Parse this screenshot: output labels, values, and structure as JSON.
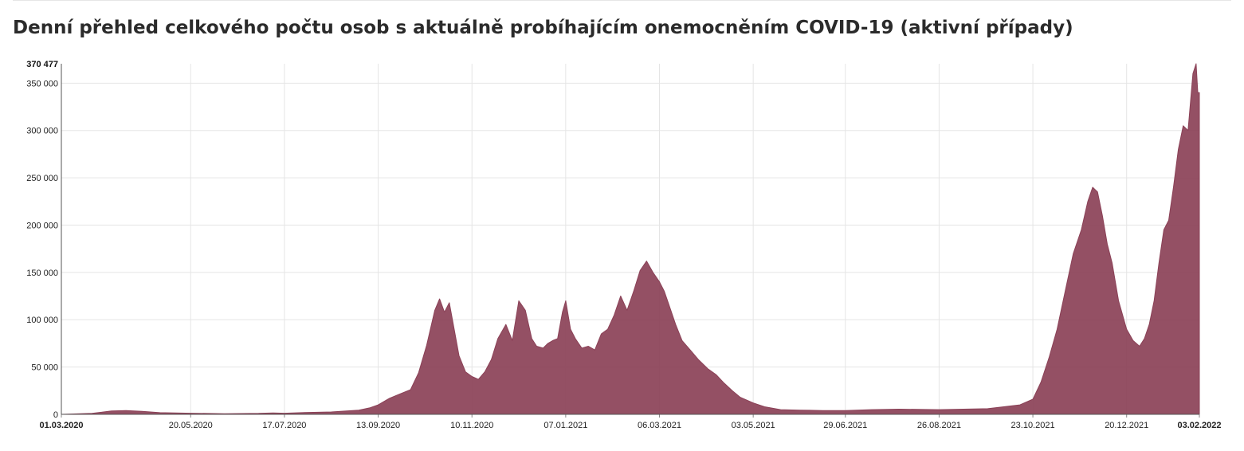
{
  "page": {
    "title": "Denní přehled celkového počtu osob s aktuálně probíhajícím onemocněním COVID-19 (aktivní případy)"
  },
  "chart_data": {
    "type": "area",
    "title": "Denní přehled celkového počtu osob s aktuálně probíhajícím onemocněním COVID-19 (aktivní případy)",
    "color": "#8b4157",
    "grid": true,
    "xlim": [
      "01.03.2020",
      "03.02.2022"
    ],
    "ylim": [
      0,
      370477
    ],
    "y_ticks": [
      0,
      50000,
      100000,
      150000,
      200000,
      250000,
      300000,
      350000
    ],
    "y_tick_labels": [
      "0",
      "50 000",
      "100 000",
      "150 000",
      "200 000",
      "250 000",
      "300 000",
      "350 000"
    ],
    "y_max_label": "370 477",
    "x_ticks": [
      "01.03.2020",
      "20.05.2020",
      "17.07.2020",
      "13.09.2020",
      "10.11.2020",
      "07.01.2021",
      "06.03.2021",
      "03.05.2021",
      "29.06.2021",
      "26.08.2021",
      "23.10.2021",
      "20.12.2021",
      "03.02.2022"
    ],
    "x_tick_bold": [
      "01.03.2020",
      "03.02.2022"
    ],
    "series": [
      {
        "x": [
          "01.03.2020",
          "20.03.2020",
          "01.04.2020",
          "10.04.2020",
          "20.04.2020",
          "01.05.2020",
          "20.05.2020",
          "10.06.2020",
          "01.07.2020",
          "10.07.2020",
          "17.07.2020",
          "01.08.2020",
          "15.08.2020",
          "01.09.2020",
          "08.09.2020",
          "13.09.2020",
          "20.09.2020",
          "27.09.2020",
          "03.10.2020",
          "08.10.2020",
          "13.10.2020",
          "18.10.2020",
          "21.10.2020",
          "24.10.2020",
          "27.10.2020",
          "30.10.2020",
          "02.11.2020",
          "06.11.2020",
          "10.11.2020",
          "14.11.2020",
          "18.11.2020",
          "22.11.2020",
          "26.11.2020",
          "01.12.2020",
          "05.12.2020",
          "09.12.2020",
          "13.12.2020",
          "17.12.2020",
          "20.12.2020",
          "24.12.2020",
          "27.12.2020",
          "30.12.2020",
          "02.01.2021",
          "05.01.2021",
          "07.01.2021",
          "10.01.2021",
          "13.01.2021",
          "17.01.2021",
          "21.01.2021",
          "25.01.2021",
          "29.01.2021",
          "02.02.2021",
          "06.02.2021",
          "10.02.2021",
          "14.02.2021",
          "18.02.2021",
          "22.02.2021",
          "26.02.2021",
          "02.03.2021",
          "06.03.2021",
          "09.03.2021",
          "12.03.2021",
          "16.03.2021",
          "20.03.2021",
          "25.03.2021",
          "30.03.2021",
          "05.04.2021",
          "10.04.2021",
          "15.04.2021",
          "20.04.2021",
          "25.04.2021",
          "03.05.2021",
          "10.05.2021",
          "20.05.2021",
          "01.06.2021",
          "15.06.2021",
          "29.06.2021",
          "15.07.2021",
          "01.08.2021",
          "26.08.2021",
          "10.09.2021",
          "25.09.2021",
          "05.10.2021",
          "15.10.2021",
          "23.10.2021",
          "28.10.2021",
          "02.11.2021",
          "07.11.2021",
          "12.11.2021",
          "17.11.2021",
          "22.11.2021",
          "26.11.2021",
          "29.11.2021",
          "02.12.2021",
          "05.12.2021",
          "08.12.2021",
          "11.12.2021",
          "15.12.2021",
          "20.12.2021",
          "24.12.2021",
          "28.12.2021",
          "31.12.2021",
          "03.01.2022",
          "06.01.2022",
          "09.01.2022",
          "12.01.2022",
          "15.01.2022",
          "18.01.2022",
          "21.01.2022",
          "24.01.2022",
          "27.01.2022",
          "30.01.2022",
          "01.02.2022",
          "02.02.2022",
          "03.02.2022"
        ],
        "y": [
          0,
          1000,
          3500,
          4000,
          3200,
          1800,
          1200,
          700,
          1000,
          1500,
          1200,
          2000,
          2500,
          4500,
          7000,
          10000,
          17000,
          22000,
          26000,
          44000,
          73000,
          110000,
          122000,
          108000,
          118000,
          90000,
          62000,
          45000,
          40000,
          37000,
          45000,
          58000,
          80000,
          95000,
          78000,
          120000,
          110000,
          80000,
          72000,
          70000,
          75000,
          78000,
          80000,
          108000,
          120000,
          90000,
          80000,
          70000,
          72000,
          68000,
          85000,
          90000,
          105000,
          125000,
          110000,
          130000,
          152000,
          162000,
          150000,
          140000,
          130000,
          115000,
          95000,
          78000,
          68000,
          58000,
          48000,
          42000,
          33000,
          25000,
          18000,
          12000,
          8000,
          5000,
          4500,
          4000,
          4000,
          5000,
          5500,
          5000,
          5500,
          6000,
          8000,
          10000,
          16000,
          34000,
          60000,
          90000,
          130000,
          170000,
          195000,
          225000,
          240000,
          235000,
          210000,
          180000,
          160000,
          120000,
          90000,
          78000,
          72000,
          80000,
          95000,
          120000,
          160000,
          195000,
          205000,
          240000,
          280000,
          305000,
          300000,
          360000,
          370477,
          340000,
          340000
        ]
      }
    ]
  }
}
